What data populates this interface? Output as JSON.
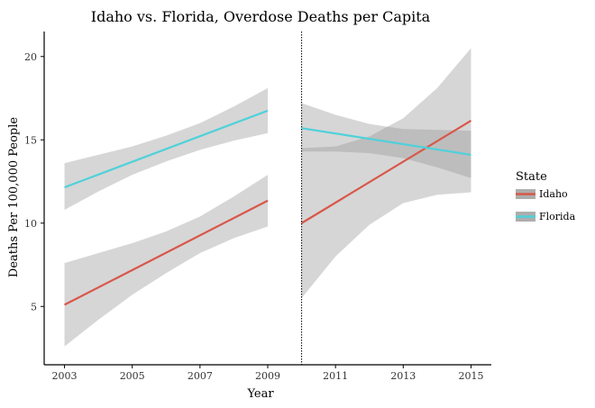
{
  "chart_data": {
    "type": "line",
    "title": "Idaho vs. Florida, Overdose Deaths per Capita",
    "xlabel": "Year",
    "ylabel": "Deaths Per 100,000 People",
    "xlim": [
      2002.4,
      2015.6
    ],
    "ylim": [
      1.5,
      21.5
    ],
    "xticks": [
      2003,
      2005,
      2007,
      2009,
      2011,
      2013,
      2015
    ],
    "yticks": [
      5,
      10,
      15,
      20
    ],
    "xtick_labels": [
      "2003",
      "2005",
      "2007",
      "2009",
      "2011",
      "2013",
      "2015"
    ],
    "ytick_labels": [
      "5",
      "10",
      "15",
      "20"
    ],
    "vline": {
      "x": 2010,
      "style": "dotted"
    },
    "grid": false,
    "legend": {
      "title": "State",
      "position": "right"
    },
    "series": [
      {
        "name": "Idaho",
        "color": "#D9574A",
        "segments": [
          {
            "x": [
              2003,
              2009
            ],
            "y": [
              5.1,
              11.35
            ],
            "band": {
              "x": [
                2003,
                2004,
                2005,
                2006,
                2007,
                2008,
                2009
              ],
              "lower": [
                2.6,
                4.2,
                5.7,
                7.0,
                8.2,
                9.1,
                9.8
              ],
              "upper": [
                7.6,
                8.2,
                8.8,
                9.5,
                10.4,
                11.6,
                12.9
              ]
            }
          },
          {
            "x": [
              2010,
              2015
            ],
            "y": [
              10.0,
              16.15
            ],
            "band": {
              "x": [
                2010,
                2011,
                2012,
                2013,
                2014,
                2015
              ],
              "lower": [
                5.5,
                8.0,
                9.9,
                11.2,
                11.7,
                11.85
              ],
              "upper": [
                14.5,
                14.6,
                15.2,
                16.3,
                18.1,
                20.5
              ]
            }
          }
        ]
      },
      {
        "name": "Florida",
        "color": "#4FD1DA",
        "segments": [
          {
            "x": [
              2003,
              2009
            ],
            "y": [
              12.15,
              16.75
            ],
            "band": {
              "x": [
                2003,
                2004,
                2005,
                2006,
                2007,
                2008,
                2009
              ],
              "lower": [
                10.8,
                11.9,
                12.9,
                13.7,
                14.4,
                14.95,
                15.4
              ],
              "upper": [
                13.6,
                14.1,
                14.6,
                15.25,
                16.0,
                17.0,
                18.1
              ]
            }
          },
          {
            "x": [
              2010,
              2015
            ],
            "y": [
              15.7,
              14.1
            ],
            "band": {
              "x": [
                2010,
                2011,
                2012,
                2013,
                2014,
                2015
              ],
              "lower": [
                14.3,
                14.3,
                14.2,
                13.9,
                13.35,
                12.7
              ],
              "upper": [
                17.2,
                16.5,
                15.95,
                15.65,
                15.6,
                15.55
              ]
            }
          }
        ]
      }
    ]
  }
}
